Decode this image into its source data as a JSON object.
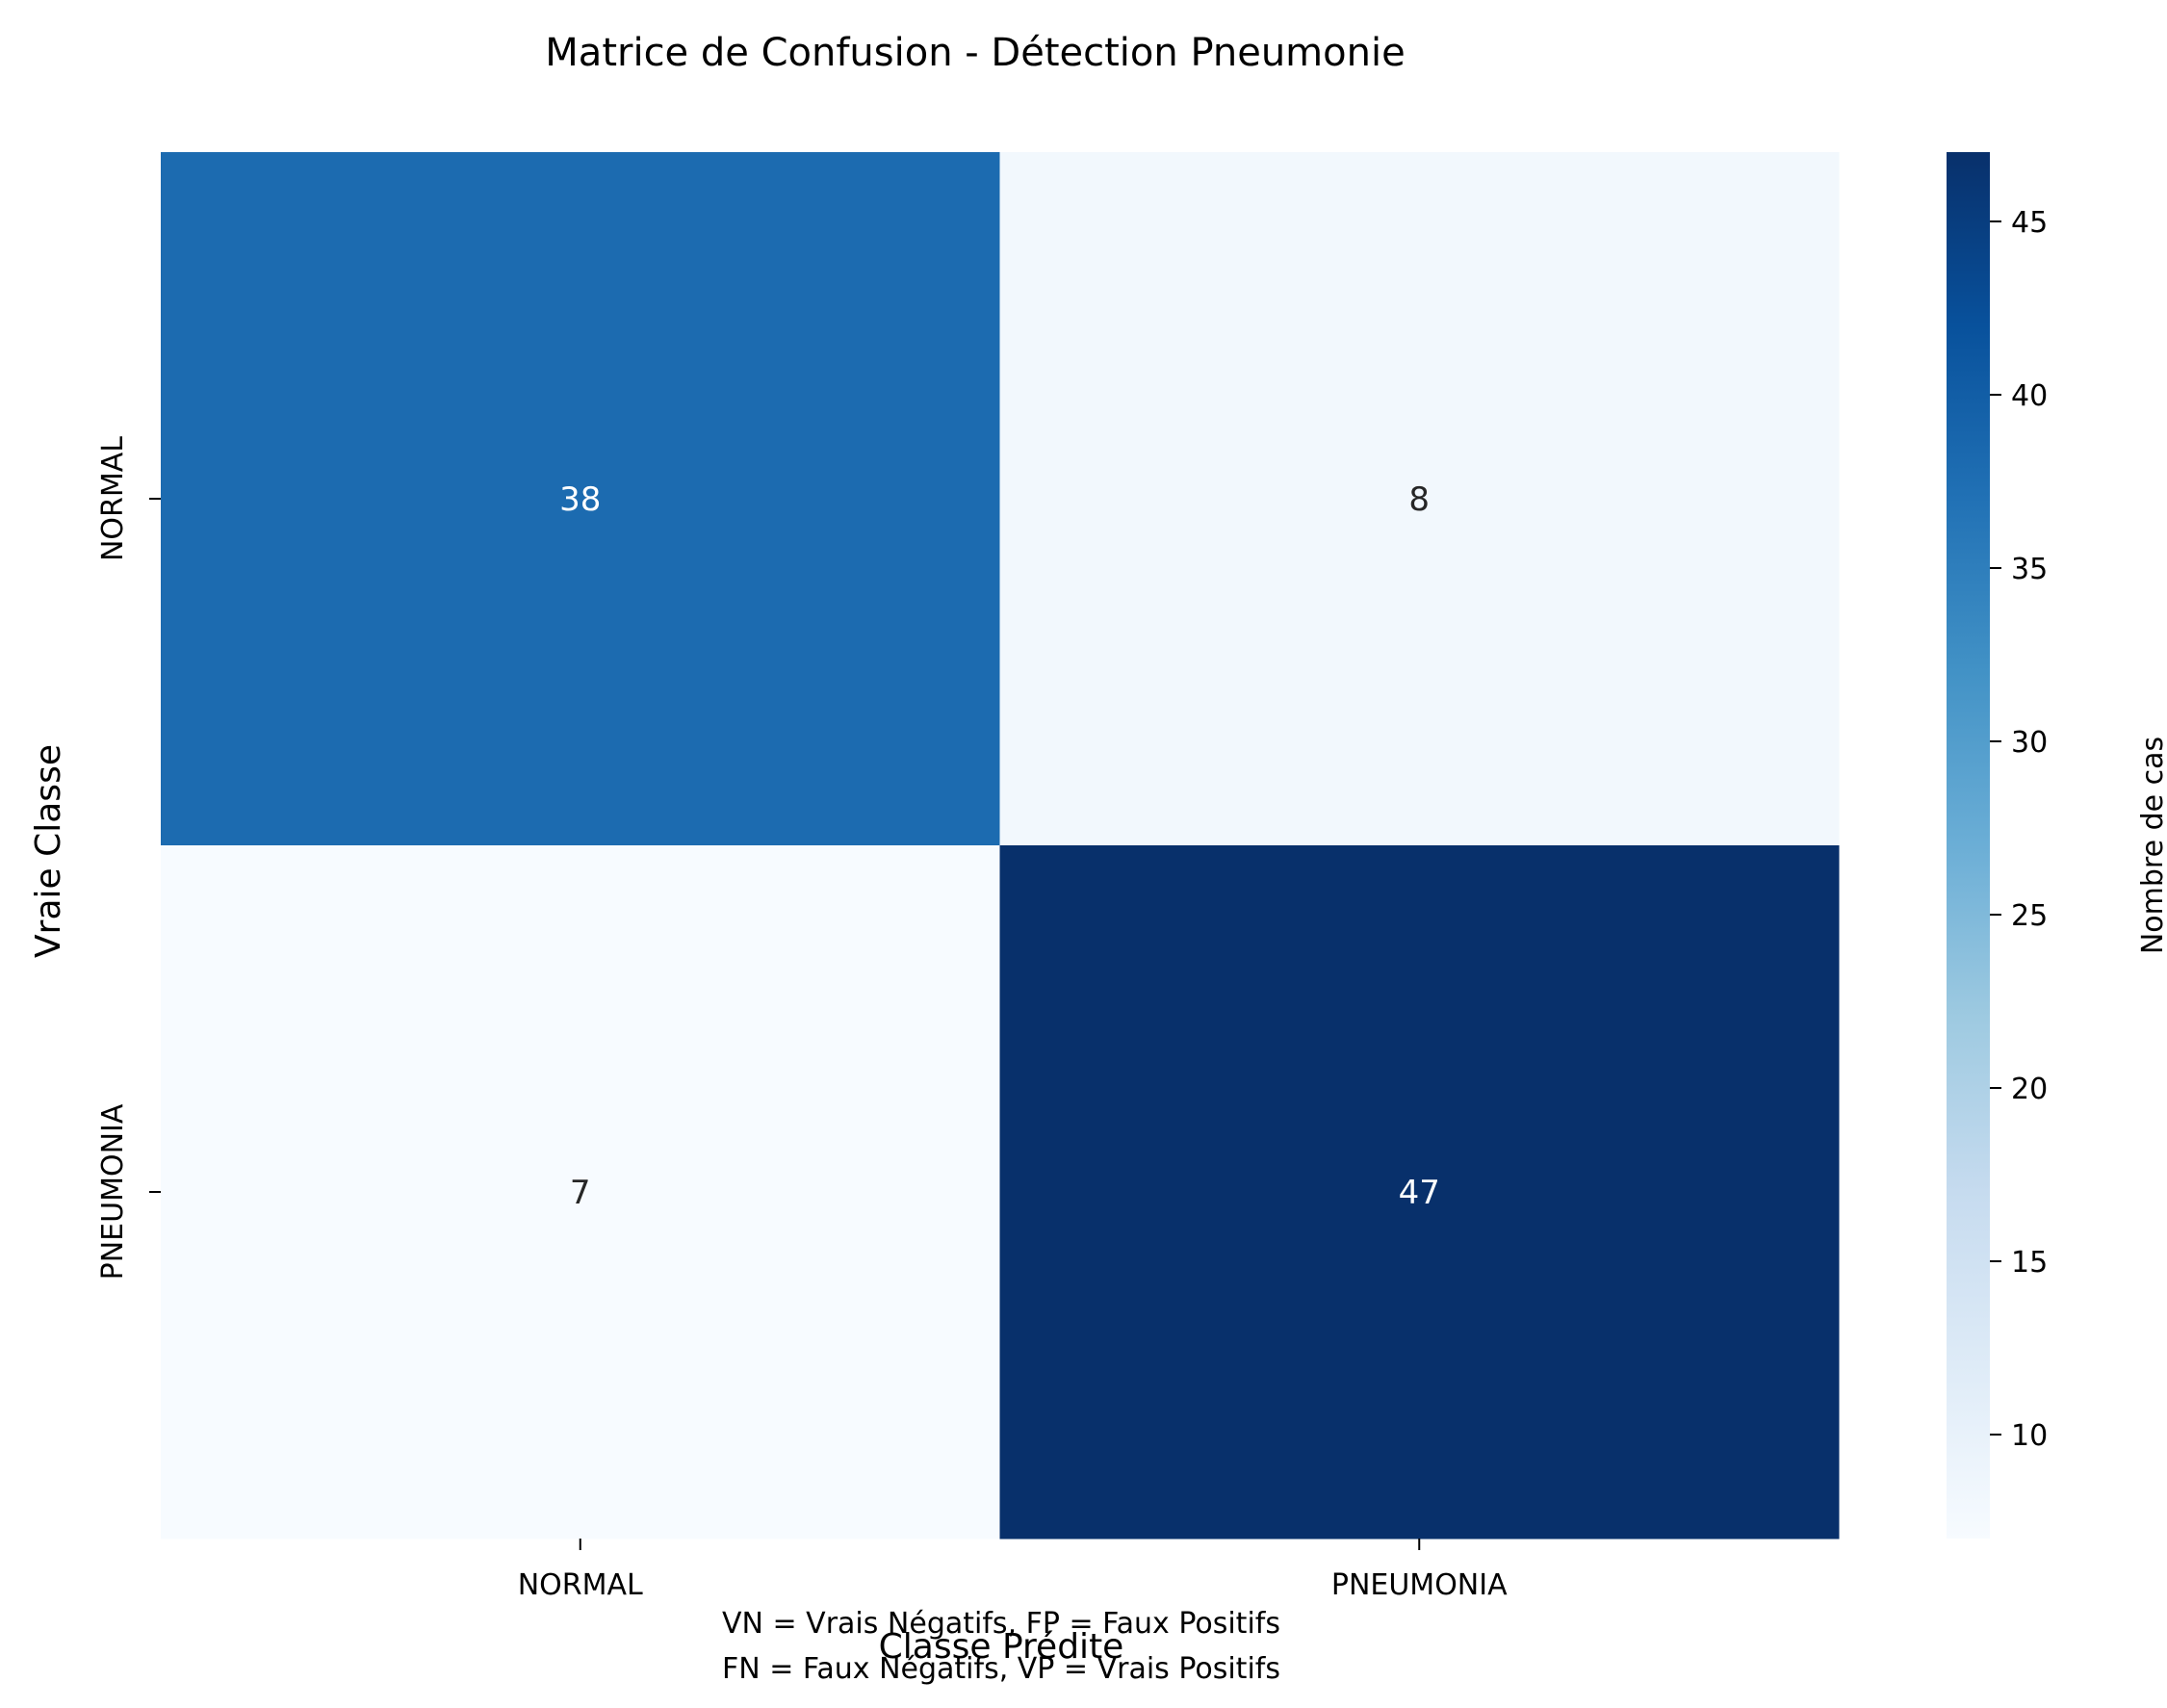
{
  "chart_data": {
    "type": "heatmap",
    "title": "Matrice de Confusion - Détection Pneumonie",
    "xlabel": "Classe Prédite",
    "ylabel": "Vraie Classe",
    "x_categories": [
      "NORMAL",
      "PNEUMONIA"
    ],
    "y_categories": [
      "NORMAL",
      "PNEUMONIA"
    ],
    "matrix": [
      [
        38,
        8
      ],
      [
        7,
        47
      ]
    ],
    "colorbar": {
      "label": "Nombre de cas",
      "range": [
        7,
        47
      ],
      "ticks": [
        10,
        15,
        20,
        25,
        30,
        35,
        40,
        45
      ],
      "colormap": "Blues",
      "color_low": "#f7fbff",
      "color_high": "#08306b"
    },
    "annotation_lines": [
      "VN = Vrais Négatifs, FP = Faux Positifs",
      "FN = Faux Négatifs, VP = Vrais Positifs"
    ]
  }
}
